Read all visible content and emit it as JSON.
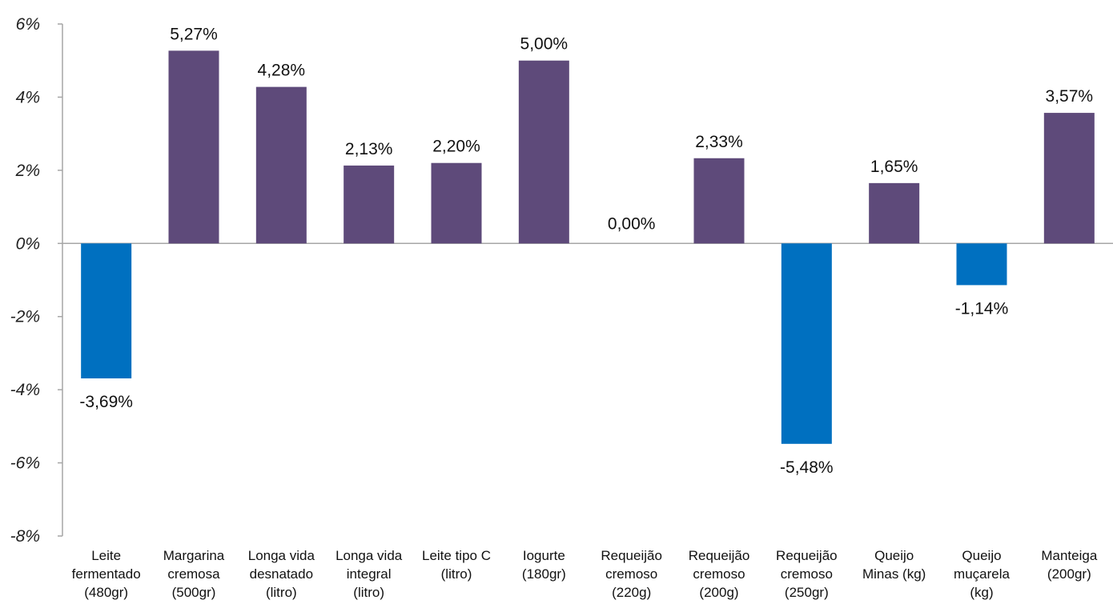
{
  "chart_data": {
    "type": "bar",
    "categories": [
      [
        "Leite",
        "fermentado",
        "(480gr)"
      ],
      [
        "Margarina",
        "cremosa",
        "(500gr)"
      ],
      [
        "Longa vida",
        "desnatado",
        "(litro)"
      ],
      [
        "Longa vida",
        "integral",
        "(litro)"
      ],
      [
        "Leite tipo C",
        "(litro)"
      ],
      [
        "Iogurte",
        "(180gr)"
      ],
      [
        "Requeijão",
        "cremoso",
        "(220g)"
      ],
      [
        "Requeijão",
        "cremoso",
        "(200g)"
      ],
      [
        "Requeijão",
        "cremoso",
        "(250gr)"
      ],
      [
        "Queijo",
        "Minas  (kg)"
      ],
      [
        "Queijo",
        "muçarela",
        "(kg)"
      ],
      [
        "Manteiga",
        "(200gr)"
      ]
    ],
    "values": [
      -3.69,
      5.27,
      4.28,
      2.13,
      2.2,
      5.0,
      0.0,
      2.33,
      -5.48,
      1.65,
      -1.14,
      3.57
    ],
    "data_labels": [
      "-3,69%",
      "5,27%",
      "4,28%",
      "2,13%",
      "2,20%",
      "5,00%",
      "0,00%",
      "2,33%",
      "-5,48%",
      "1,65%",
      "-1,14%",
      "3,57%"
    ],
    "yticks": [
      6,
      4,
      2,
      0,
      -2,
      -4,
      -6,
      -8
    ],
    "ytick_labels": [
      "6%",
      "4%",
      "2%",
      "0%",
      "-2%",
      "-4%",
      "-6%",
      "-8%"
    ],
    "ylim": [
      -8,
      6
    ],
    "grid": false,
    "colors": {
      "positive": "#5e4a7a",
      "negative": "#0070c0",
      "axis": "#a6a6a6"
    }
  }
}
